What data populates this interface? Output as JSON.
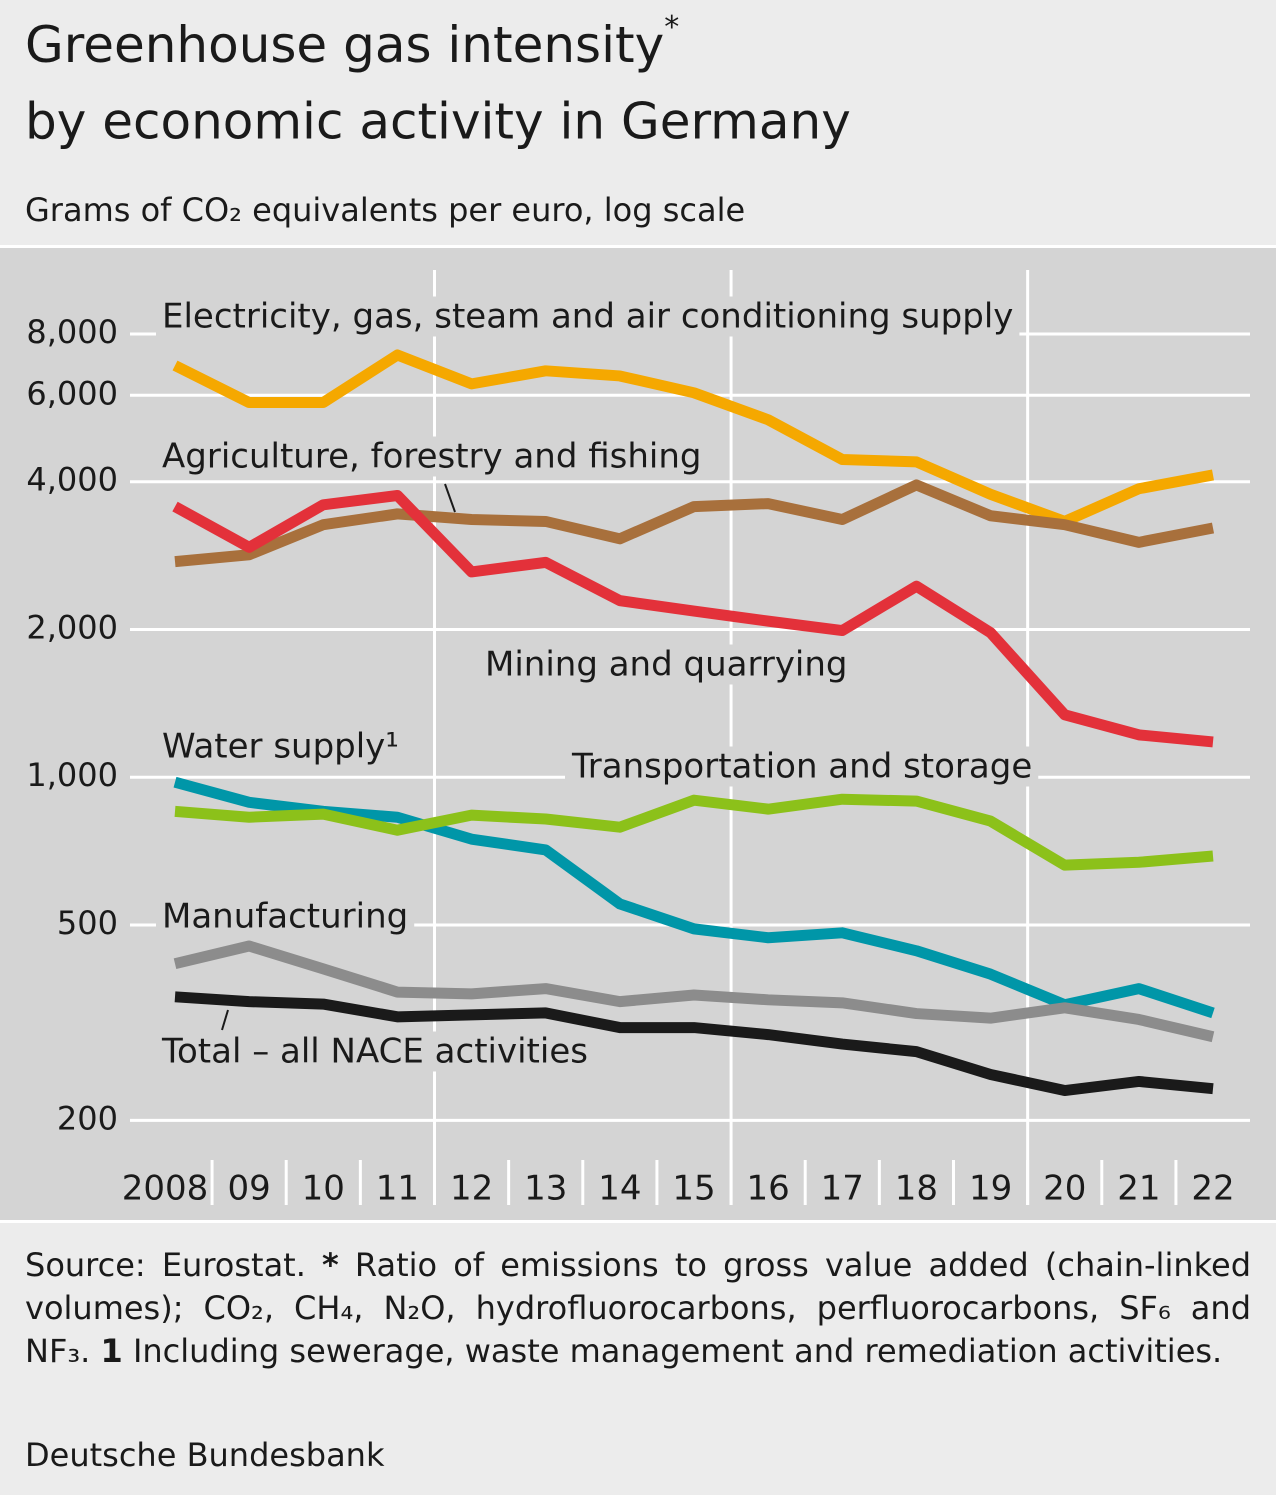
{
  "chart_data": {
    "type": "line",
    "title": [
      "Greenhouse gas intensity",
      "by economic activity in Germany"
    ],
    "title_footnote_mark": "*",
    "subtitle": "Grams of CO₂ equivalents per euro, log scale",
    "categories": [
      "2008",
      "09",
      "10",
      "11",
      "12",
      "13",
      "14",
      "15",
      "16",
      "17",
      "18",
      "19",
      "20",
      "21",
      "22"
    ],
    "log_scale": true,
    "grid": true,
    "ylim": [
      174,
      10800
    ],
    "yticks": [
      200,
      500,
      {
        "value": 1000,
        "label": "1,000"
      },
      {
        "value": 2000,
        "label": "2,000"
      },
      {
        "value": 4000,
        "label": "4,000"
      },
      {
        "value": 6000,
        "label": "6,000"
      },
      {
        "value": 8000,
        "label": "8,000"
      }
    ],
    "series": [
      {
        "name": "Electricity, gas, steam and air conditioning supply",
        "color": "#f5a800",
        "values": [
          6900,
          5800,
          5800,
          7250,
          6330,
          6730,
          6570,
          6070,
          5350,
          4440,
          4390,
          3770,
          3320,
          3870,
          4130
        ]
      },
      {
        "name": "Agriculture, forestry and fishing",
        "color": "#a8703c",
        "values": [
          2750,
          2840,
          3270,
          3440,
          3350,
          3320,
          3060,
          3560,
          3610,
          3350,
          3940,
          3410,
          3270,
          3010,
          3220
        ]
      },
      {
        "name": "Mining and quarrying",
        "color": "#e3313a",
        "values": [
          3560,
          2940,
          3590,
          3750,
          2620,
          2740,
          2290,
          2180,
          2080,
          1990,
          2450,
          1970,
          1340,
          1220,
          1180
        ]
      },
      {
        "name": "Water supply¹",
        "color": "#0096a8",
        "values": [
          977,
          889,
          852,
          829,
          748,
          711,
          552,
          491,
          471,
          482,
          443,
          397,
          344,
          371,
          331
        ]
      },
      {
        "name": "Transportation and storage",
        "color": "#8cc11a",
        "values": [
          852,
          829,
          841,
          780,
          837,
          822,
          791,
          898,
          861,
          902,
          894,
          814,
          662,
          671,
          691
        ]
      },
      {
        "name": "Manufacturing",
        "color": "#8c8c8c",
        "values": [
          417,
          453,
          407,
          365,
          362,
          371,
          349,
          360,
          352,
          347,
          330,
          323,
          339,
          321,
          296
        ]
      },
      {
        "name": "Total – all NACE activities",
        "color": "#1a1a1a",
        "values": [
          357,
          349,
          345,
          325,
          328,
          331,
          309,
          309,
          299,
          286,
          276,
          248,
          230,
          240,
          232
        ]
      }
    ]
  },
  "footer": {
    "source": "Source: Eurostat.",
    "note_mark": "*",
    "note": "Ratio of emissions to gross value added (chain-linked volumes); CO₂, CH₄, N₂O, hydrofluorocarbons, perfluorocarbons, SF₆ and NF₃.",
    "footnote_mark": "1",
    "footnote": "Including sewerage, waste management and remediation activities.",
    "credit": "Deutsche Bundesbank"
  }
}
